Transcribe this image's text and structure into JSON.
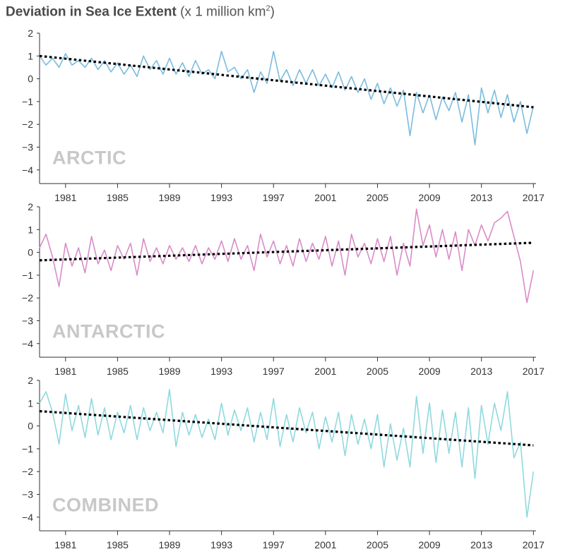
{
  "title": {
    "bold": "Deviation in Sea Ice Extent",
    "rest": "(x 1 million km",
    "sup": "2",
    "close": ")"
  },
  "chart_data": [
    {
      "type": "line",
      "panel_label": "ARCTIC",
      "color": "#7bbcde",
      "xlim": [
        1979.0,
        2017.2
      ],
      "ylim": [
        -4.6,
        2
      ],
      "y_ticks": [
        2,
        1,
        0,
        -1,
        -2,
        -3,
        -4
      ],
      "x_ticks": [
        1981,
        1985,
        1989,
        1993,
        1997,
        2001,
        2005,
        2009,
        2013,
        2017
      ],
      "grid": false,
      "trend": {
        "x": [
          1979.0,
          2017.0
        ],
        "y": [
          1.0,
          -1.25
        ]
      },
      "series": [
        {
          "x": [
            1979.0,
            1979.5,
            1980.0,
            1980.5,
            1981.0,
            1981.5,
            1982.0,
            1982.5,
            1983.0,
            1983.5,
            1984.0,
            1984.5,
            1985.0,
            1985.5,
            1986.0,
            1986.5,
            1987.0,
            1987.5,
            1988.0,
            1988.5,
            1989.0,
            1989.5,
            1990.0,
            1990.5,
            1991.0,
            1991.5,
            1992.0,
            1992.5,
            1993.0,
            1993.5,
            1994.0,
            1994.5,
            1995.0,
            1995.5,
            1996.0,
            1996.5,
            1997.0,
            1997.5,
            1998.0,
            1998.5,
            1999.0,
            1999.5,
            2000.0,
            2000.5,
            2001.0,
            2001.5,
            2002.0,
            2002.5,
            2003.0,
            2003.5,
            2004.0,
            2004.5,
            2005.0,
            2005.5,
            2006.0,
            2006.5,
            2007.0,
            2007.5,
            2008.0,
            2008.5,
            2009.0,
            2009.5,
            2010.0,
            2010.5,
            2011.0,
            2011.5,
            2012.0,
            2012.5,
            2013.0,
            2013.5,
            2014.0,
            2014.5,
            2015.0,
            2015.5,
            2016.0,
            2016.5,
            2017.0
          ],
          "y": [
            1.0,
            0.6,
            0.9,
            0.5,
            1.1,
            0.6,
            0.8,
            0.5,
            0.9,
            0.4,
            0.8,
            0.3,
            0.7,
            0.2,
            0.6,
            0.1,
            1.0,
            0.4,
            0.8,
            0.2,
            0.9,
            0.2,
            0.7,
            0.1,
            0.8,
            0.2,
            0.4,
            0.0,
            1.2,
            0.3,
            0.5,
            0.0,
            0.4,
            -0.6,
            0.3,
            -0.2,
            1.2,
            -0.1,
            0.4,
            -0.3,
            0.4,
            -0.2,
            0.4,
            -0.3,
            0.2,
            -0.4,
            0.3,
            -0.5,
            0.1,
            -0.6,
            0.0,
            -0.9,
            -0.2,
            -1.1,
            -0.4,
            -1.2,
            -0.5,
            -2.5,
            -0.6,
            -1.5,
            -0.7,
            -1.8,
            -0.8,
            -1.4,
            -0.6,
            -1.9,
            -0.7,
            -2.9,
            -0.4,
            -1.5,
            -0.5,
            -1.7,
            -0.7,
            -1.9,
            -1.0,
            -2.4,
            -1.2
          ]
        }
      ]
    },
    {
      "type": "line",
      "panel_label": "ANTARCTIC",
      "color": "#d98cc8",
      "xlim": [
        1979.0,
        2017.2
      ],
      "ylim": [
        -4.6,
        2
      ],
      "y_ticks": [
        2,
        1,
        0,
        -1,
        -2,
        -3,
        -4
      ],
      "x_ticks": [
        1981,
        1985,
        1989,
        1993,
        1997,
        2001,
        2005,
        2009,
        2013,
        2017
      ],
      "grid": false,
      "trend": {
        "x": [
          1979.0,
          2017.0
        ],
        "y": [
          -0.35,
          0.42
        ]
      },
      "series": [
        {
          "x": [
            1979.0,
            1979.5,
            1980.0,
            1980.5,
            1981.0,
            1981.5,
            1982.0,
            1982.5,
            1983.0,
            1983.5,
            1984.0,
            1984.5,
            1985.0,
            1985.5,
            1986.0,
            1986.5,
            1987.0,
            1987.5,
            1988.0,
            1988.5,
            1989.0,
            1989.5,
            1990.0,
            1990.5,
            1991.0,
            1991.5,
            1992.0,
            1992.5,
            1993.0,
            1993.5,
            1994.0,
            1994.5,
            1995.0,
            1995.5,
            1996.0,
            1996.5,
            1997.0,
            1997.5,
            1998.0,
            1998.5,
            1999.0,
            1999.5,
            2000.0,
            2000.5,
            2001.0,
            2001.5,
            2002.0,
            2002.5,
            2003.0,
            2003.5,
            2004.0,
            2004.5,
            2005.0,
            2005.5,
            2006.0,
            2006.5,
            2007.0,
            2007.5,
            2008.0,
            2008.5,
            2009.0,
            2009.5,
            2010.0,
            2010.5,
            2011.0,
            2011.5,
            2012.0,
            2012.5,
            2013.0,
            2013.5,
            2014.0,
            2014.5,
            2015.0,
            2015.5,
            2016.0,
            2016.5,
            2017.0
          ],
          "y": [
            0.2,
            0.8,
            -0.2,
            -1.5,
            0.4,
            -0.6,
            0.2,
            -0.9,
            0.7,
            -0.5,
            0.1,
            -0.8,
            0.3,
            -0.3,
            0.4,
            -1.0,
            0.6,
            -0.4,
            0.2,
            -0.5,
            0.3,
            -0.3,
            0.2,
            -0.4,
            0.3,
            -0.5,
            0.2,
            -0.3,
            0.5,
            -0.4,
            0.6,
            -0.3,
            0.3,
            -0.8,
            0.8,
            -0.2,
            0.5,
            -0.5,
            0.3,
            -0.6,
            0.6,
            -0.4,
            0.4,
            -0.3,
            0.7,
            -0.6,
            0.5,
            -1.0,
            0.8,
            -0.2,
            0.4,
            -0.5,
            0.6,
            -0.4,
            0.7,
            -1.0,
            0.4,
            -0.6,
            1.9,
            0.3,
            1.2,
            -0.2,
            1.0,
            -0.3,
            0.9,
            -0.8,
            1.0,
            0.3,
            1.2,
            0.5,
            1.3,
            1.5,
            1.8,
            0.7,
            -0.4,
            -2.2,
            -0.8
          ]
        }
      ]
    },
    {
      "type": "line",
      "panel_label": "COMBINED",
      "color": "#8fd9de",
      "xlim": [
        1979.0,
        2017.2
      ],
      "ylim": [
        -4.6,
        2
      ],
      "y_ticks": [
        2,
        1,
        0,
        -1,
        -2,
        -3,
        -4
      ],
      "x_ticks": [
        1981,
        1985,
        1989,
        1993,
        1997,
        2001,
        2005,
        2009,
        2013,
        2017
      ],
      "grid": false,
      "trend": {
        "x": [
          1979.0,
          2017.0
        ],
        "y": [
          0.65,
          -0.85
        ]
      },
      "series": [
        {
          "x": [
            1979.0,
            1979.5,
            1980.0,
            1980.5,
            1981.0,
            1981.5,
            1982.0,
            1982.5,
            1983.0,
            1983.5,
            1984.0,
            1984.5,
            1985.0,
            1985.5,
            1986.0,
            1986.5,
            1987.0,
            1987.5,
            1988.0,
            1988.5,
            1989.0,
            1989.5,
            1990.0,
            1990.5,
            1991.0,
            1991.5,
            1992.0,
            1992.5,
            1993.0,
            1993.5,
            1994.0,
            1994.5,
            1995.0,
            1995.5,
            1996.0,
            1996.5,
            1997.0,
            1997.5,
            1998.0,
            1998.5,
            1999.0,
            1999.5,
            2000.0,
            2000.5,
            2001.0,
            2001.5,
            2002.0,
            2002.5,
            2003.0,
            2003.5,
            2004.0,
            2004.5,
            2005.0,
            2005.5,
            2006.0,
            2006.5,
            2007.0,
            2007.5,
            2008.0,
            2008.5,
            2009.0,
            2009.5,
            2010.0,
            2010.5,
            2011.0,
            2011.5,
            2012.0,
            2012.5,
            2013.0,
            2013.5,
            2014.0,
            2014.5,
            2015.0,
            2015.5,
            2016.0,
            2016.5,
            2017.0
          ],
          "y": [
            1.0,
            1.5,
            0.6,
            -0.8,
            1.4,
            -0.2,
            0.9,
            -0.5,
            1.2,
            -0.4,
            0.8,
            -0.6,
            0.6,
            -0.3,
            0.9,
            -0.6,
            0.8,
            -0.2,
            0.6,
            -0.3,
            1.6,
            -0.9,
            0.6,
            -0.4,
            0.5,
            -0.5,
            0.3,
            -0.6,
            1.0,
            -0.4,
            0.7,
            -0.2,
            0.8,
            -0.7,
            0.6,
            -0.6,
            1.2,
            -0.9,
            0.5,
            -0.7,
            0.8,
            -0.3,
            0.6,
            -1.0,
            0.4,
            -0.7,
            0.6,
            -1.3,
            0.5,
            -0.8,
            0.3,
            -1.0,
            0.5,
            -1.8,
            0.1,
            -1.5,
            -0.1,
            -1.8,
            1.3,
            -1.2,
            1.0,
            -1.6,
            0.7,
            -1.2,
            0.6,
            -1.8,
            0.8,
            -2.3,
            0.9,
            -0.8,
            1.0,
            -0.2,
            1.5,
            -1.4,
            -0.7,
            -4.0,
            -2.0
          ]
        }
      ]
    }
  ]
}
